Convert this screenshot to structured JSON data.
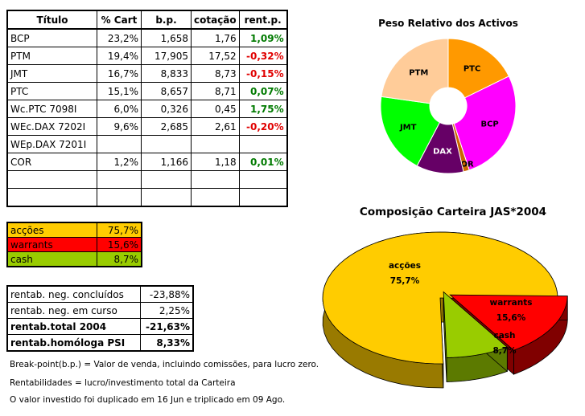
{
  "holdings": {
    "headers": [
      "Título",
      "% Cart",
      "b.p.",
      "cotação",
      "rent.p."
    ],
    "rows": [
      {
        "titulo": "BCP",
        "cart": "23,2%",
        "bp": "1,658",
        "cot": "1,76",
        "rent": "1,09%",
        "sign": "pos"
      },
      {
        "titulo": "PTM",
        "cart": "19,4%",
        "bp": "17,905",
        "cot": "17,52",
        "rent": "-0,32%",
        "sign": "neg"
      },
      {
        "titulo": "JMT",
        "cart": "16,7%",
        "bp": "8,833",
        "cot": "8,73",
        "rent": "-0,15%",
        "sign": "neg"
      },
      {
        "titulo": "PTC",
        "cart": "15,1%",
        "bp": "8,657",
        "cot": "8,71",
        "rent": "0,07%",
        "sign": "pos"
      },
      {
        "titulo": "Wc.PTC 7098I",
        "cart": "6,0%",
        "bp": "0,326",
        "cot": "0,45",
        "rent": "1,75%",
        "sign": "pos"
      },
      {
        "titulo": "WEc.DAX 7202I",
        "cart": "9,6%",
        "bp": "2,685",
        "cot": "2,61",
        "rent": "-0,20%",
        "sign": "neg"
      },
      {
        "titulo": "WEp.DAX 7201I",
        "cart": "",
        "bp": "",
        "cot": "",
        "rent": "",
        "sign": ""
      },
      {
        "titulo": "COR",
        "cart": "1,2%",
        "bp": "1,166",
        "cot": "1,18",
        "rent": "0,01%",
        "sign": "pos"
      },
      {
        "titulo": "",
        "cart": "",
        "bp": "",
        "cot": "",
        "rent": "",
        "sign": ""
      },
      {
        "titulo": "",
        "cart": "",
        "bp": "",
        "cot": "",
        "rent": "",
        "sign": ""
      }
    ]
  },
  "allocation": [
    {
      "label": "acções",
      "value": "75,7%",
      "color": "#ffcc00"
    },
    {
      "label": "warrants",
      "value": "15,6%",
      "color": "#ff0000"
    },
    {
      "label": "cash",
      "value": "8,7%",
      "color": "#99cc00"
    }
  ],
  "rentab": [
    {
      "label": "rentab. neg. concluídos",
      "value": "-23,88%",
      "bold": false
    },
    {
      "label": "rentab. neg. em curso",
      "value": "2,25%",
      "bold": false
    },
    {
      "label": "rentab.total 2004",
      "value": "-21,63%",
      "bold": true
    },
    {
      "label": "rentab.homóloga PSI",
      "value": "8,33%",
      "bold": true
    }
  ],
  "notes": [
    "Break-point(b.p.) = Valor de venda, incluindo comissões, para lucro zero.",
    "Rentabilidades = lucro/investimento total da Carteira",
    "O valor investido foi duplicado em 16 Jun e triplicado em 09 Ago."
  ],
  "chart_data": [
    {
      "type": "pie",
      "title": "Peso Relativo dos Activos",
      "donut": true,
      "categories": [
        "PTC",
        "BCP",
        "COR",
        "DAX",
        "JMT",
        "PTM"
      ],
      "values": [
        15.1,
        23.2,
        1.2,
        9.6,
        16.7,
        19.4
      ],
      "colors": [
        "#ff9900",
        "#ff00ff",
        "#cc6600",
        "#660066",
        "#00ff00",
        "#ffcc99"
      ]
    },
    {
      "type": "pie",
      "title": "Composição Carteira JAS*2004",
      "three_d": true,
      "categories": [
        "acções",
        "warrants",
        "cash"
      ],
      "labels": [
        "75,7%",
        "15,6%",
        "8,7%"
      ],
      "values": [
        75.7,
        15.6,
        8.7
      ],
      "colors": [
        "#ffcc00",
        "#ff0000",
        "#99cc00"
      ],
      "side_colors": [
        "#997a00",
        "#800000",
        "#5c7a00"
      ]
    }
  ]
}
